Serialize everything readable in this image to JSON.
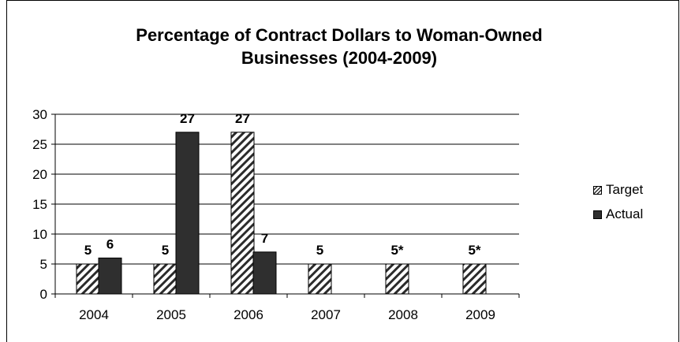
{
  "chart_data": {
    "type": "bar",
    "title": "Percentage of Contract Dollars to Woman-Owned Businesses (2004-2009)",
    "title_lines": [
      "Percentage of Contract Dollars to Woman-Owned",
      "Businesses (2004-2009)"
    ],
    "categories": [
      "2004",
      "2005",
      "2006",
      "2007",
      "2008",
      "2009"
    ],
    "series": [
      {
        "name": "Target",
        "values": [
          5,
          5,
          27,
          5,
          5,
          5
        ],
        "labels": [
          "5",
          "5",
          "27",
          "5",
          "5*",
          "5*"
        ],
        "fill": "hatched"
      },
      {
        "name": "Actual",
        "values": [
          6,
          27,
          7,
          null,
          null,
          null
        ],
        "labels": [
          "6",
          "27",
          "7",
          "",
          "",
          ""
        ],
        "fill": "#2f2f2f"
      }
    ],
    "ylim": [
      0,
      30
    ],
    "yticks": [
      "0",
      "5",
      "10",
      "15",
      "20",
      "25",
      "30"
    ],
    "grid": true,
    "legend_position": "right",
    "xlabel": "",
    "ylabel": ""
  }
}
